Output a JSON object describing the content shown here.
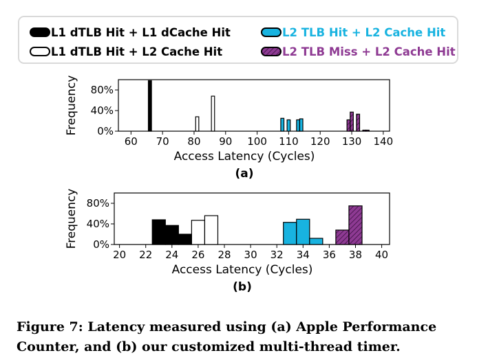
{
  "legend": {
    "items": [
      {
        "label": "L1 dTLB Hit + L1 dCache Hit",
        "color": "#000000",
        "text_color": "#000000",
        "fill": "solid"
      },
      {
        "label": "L1 dTLB Hit + L2 Cache Hit",
        "color": "#ffffff",
        "text_color": "#000000",
        "fill": "hollow"
      },
      {
        "label": "L2 TLB Hit + L2 Cache Hit",
        "color": "#18b3e0",
        "text_color": "#18b3e0",
        "fill": "solid"
      },
      {
        "label": "L2 TLB Miss + L2 Cache Hit",
        "color": "#8e3a93",
        "text_color": "#8e3a93",
        "fill": "hatched"
      }
    ]
  },
  "chart_data": [
    {
      "type": "bar",
      "subplot_label": "(a)",
      "xlabel": "Access Latency (Cycles)",
      "ylabel": "Frequency",
      "xlim": [
        56,
        142
      ],
      "ylim": [
        0,
        100
      ],
      "xticks": [
        60,
        70,
        80,
        90,
        100,
        110,
        120,
        130,
        140
      ],
      "yticks": [
        0,
        40,
        80
      ],
      "ytick_labels": [
        "0%",
        "40%",
        "80%"
      ],
      "bar_width": 1,
      "series": [
        {
          "name": "L1 dTLB Hit + L1 dCache Hit",
          "points": [
            {
              "x": 66,
              "y": 98
            }
          ]
        },
        {
          "name": "L1 dTLB Hit + L2 Cache Hit",
          "points": [
            {
              "x": 81,
              "y": 28
            },
            {
              "x": 86,
              "y": 68
            }
          ]
        },
        {
          "name": "L2 TLB Hit + L2 Cache Hit",
          "points": [
            {
              "x": 108,
              "y": 25
            },
            {
              "x": 110,
              "y": 22
            },
            {
              "x": 113,
              "y": 22
            },
            {
              "x": 114,
              "y": 24
            }
          ]
        },
        {
          "name": "L2 TLB Miss + L2 Cache Hit",
          "points": [
            {
              "x": 129,
              "y": 22
            },
            {
              "x": 130,
              "y": 37
            },
            {
              "x": 132,
              "y": 33
            },
            {
              "x": 134,
              "y": 2
            },
            {
              "x": 135,
              "y": 2
            }
          ]
        }
      ]
    },
    {
      "type": "bar",
      "subplot_label": "(b)",
      "xlabel": "Access Latency (Cycles)",
      "ylabel": "Frequency",
      "xlim": [
        19.6,
        40.6
      ],
      "ylim": [
        0,
        100
      ],
      "xticks": [
        20,
        22,
        24,
        26,
        28,
        30,
        32,
        34,
        36,
        38,
        40
      ],
      "yticks": [
        0,
        40,
        80
      ],
      "ytick_labels": [
        "0%",
        "40%",
        "80%"
      ],
      "bar_width": 1,
      "series": [
        {
          "name": "L1 dTLB Hit + L1 dCache Hit",
          "points": [
            {
              "x": 23,
              "y": 48
            },
            {
              "x": 24,
              "y": 37
            },
            {
              "x": 25,
              "y": 20
            }
          ]
        },
        {
          "name": "L1 dTLB Hit + L2 Cache Hit",
          "points": [
            {
              "x": 26,
              "y": 47
            },
            {
              "x": 27,
              "y": 56
            }
          ]
        },
        {
          "name": "L2 TLB Hit + L2 Cache Hit",
          "points": [
            {
              "x": 33,
              "y": 43
            },
            {
              "x": 34,
              "y": 49
            },
            {
              "x": 35,
              "y": 12
            }
          ]
        },
        {
          "name": "L2 TLB Miss + L2 Cache Hit",
          "points": [
            {
              "x": 37,
              "y": 28
            },
            {
              "x": 38,
              "y": 75
            }
          ]
        }
      ]
    }
  ],
  "caption": "Figure 7: Latency measured using (a) Apple Performance Counter, and (b) our customized multi-thread timer."
}
